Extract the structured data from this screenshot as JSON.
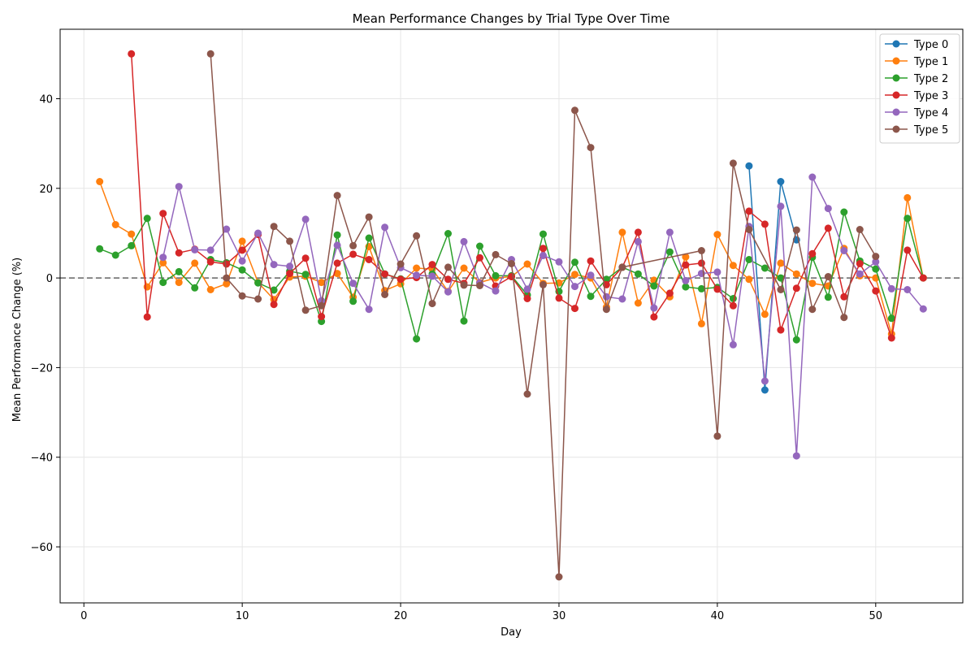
{
  "chart_data": {
    "type": "line",
    "title": "Mean Performance Changes by Trial Type Over Time",
    "xlabel": "Day",
    "ylabel": "Mean Performance Change (%)",
    "xlim": [
      -1.5,
      55.5
    ],
    "ylim": [
      -72.5,
      55.5
    ],
    "xticks": [
      0,
      10,
      20,
      30,
      40,
      50
    ],
    "yticks": [
      -60,
      -40,
      -20,
      0,
      20,
      40
    ],
    "grid": true,
    "reference_line": 0,
    "legend_position": "top-right",
    "series": [
      {
        "name": "Type 0",
        "color": "#1f77b4",
        "points": [
          [
            42,
            25
          ],
          [
            43,
            -25
          ],
          [
            44,
            21.5
          ],
          [
            45,
            8.5
          ]
        ]
      },
      {
        "name": "Type 1",
        "color": "#ff7f0e",
        "points": [
          [
            1,
            21.5
          ],
          [
            2,
            11.9
          ],
          [
            3,
            9.8
          ],
          [
            4,
            -2
          ],
          [
            5,
            3.4
          ],
          [
            6,
            -1
          ],
          [
            7,
            3.3
          ],
          [
            8,
            -2.6
          ],
          [
            9,
            -1.3
          ],
          [
            10,
            8.2
          ],
          [
            11,
            -1
          ],
          [
            12,
            -4.8
          ],
          [
            13,
            0.2
          ],
          [
            14,
            0.4
          ],
          [
            15,
            -1
          ],
          [
            16,
            1
          ],
          [
            17,
            -4.3
          ],
          [
            18,
            7
          ],
          [
            19,
            -2.8
          ],
          [
            20,
            -1.3
          ],
          [
            21,
            2.2
          ],
          [
            22,
            2
          ],
          [
            23,
            -3
          ],
          [
            24,
            2.2
          ],
          [
            25,
            -1
          ],
          [
            26,
            0
          ],
          [
            27,
            0.3
          ],
          [
            28,
            3.1
          ],
          [
            29,
            -1.2
          ],
          [
            30,
            -1.1
          ],
          [
            31,
            0.8
          ],
          [
            32,
            0
          ],
          [
            33,
            -6.5
          ],
          [
            34,
            10.2
          ],
          [
            35,
            -5.6
          ],
          [
            36,
            -0.5
          ],
          [
            37,
            -4.2
          ],
          [
            38,
            4.7
          ],
          [
            39,
            -10.2
          ],
          [
            40,
            9.7
          ],
          [
            41,
            2.8
          ],
          [
            42,
            -0.3
          ],
          [
            43,
            -8.1
          ],
          [
            44,
            3.3
          ],
          [
            45,
            0.9
          ],
          [
            46,
            -1.2
          ],
          [
            47,
            -1.8
          ],
          [
            48,
            6.6
          ],
          [
            49,
            0.5
          ],
          [
            50,
            0
          ],
          [
            51,
            -12.5
          ],
          [
            52,
            17.9
          ],
          [
            53,
            0
          ]
        ]
      },
      {
        "name": "Type 2",
        "color": "#2ca02c",
        "points": [
          [
            1,
            6.5
          ],
          [
            2,
            5.1
          ],
          [
            3,
            7.2
          ],
          [
            4,
            13.3
          ],
          [
            5,
            -1
          ],
          [
            6,
            1.4
          ],
          [
            7,
            -2.2
          ],
          [
            8,
            4.1
          ],
          [
            9,
            3.4
          ],
          [
            10,
            1.8
          ],
          [
            11,
            -1.1
          ],
          [
            12,
            -2.7
          ],
          [
            13,
            1.5
          ],
          [
            14,
            0.8
          ],
          [
            15,
            -9.7
          ],
          [
            16,
            9.6
          ],
          [
            17,
            -5.2
          ],
          [
            18,
            8.9
          ],
          [
            19,
            0.9
          ],
          [
            20,
            -0.2
          ],
          [
            21,
            -13.6
          ],
          [
            22,
            0.9
          ],
          [
            23,
            9.9
          ],
          [
            24,
            -9.6
          ],
          [
            25,
            7.1
          ],
          [
            26,
            0.5
          ],
          [
            27,
            0.5
          ],
          [
            28,
            -3.8
          ],
          [
            29,
            9.8
          ],
          [
            30,
            -3
          ],
          [
            31,
            3.5
          ],
          [
            32,
            -4.1
          ],
          [
            33,
            -0.3
          ],
          [
            34,
            2.4
          ],
          [
            35,
            0.9
          ],
          [
            36,
            -1.8
          ],
          [
            37,
            5.8
          ],
          [
            38,
            -2
          ],
          [
            39,
            -2.4
          ],
          [
            40,
            -2.1
          ],
          [
            41,
            -4.6
          ],
          [
            42,
            4.1
          ],
          [
            43,
            2.2
          ],
          [
            44,
            0
          ],
          [
            45,
            -13.8
          ],
          [
            46,
            4.6
          ],
          [
            47,
            -4.3
          ],
          [
            48,
            14.7
          ],
          [
            49,
            3.8
          ],
          [
            50,
            2
          ],
          [
            51,
            -9
          ],
          [
            52,
            13.3
          ],
          [
            53,
            0
          ]
        ]
      },
      {
        "name": "Type 3",
        "color": "#d62728",
        "points": [
          [
            3,
            50
          ],
          [
            4,
            -8.7
          ],
          [
            5,
            14.4
          ],
          [
            6,
            5.6
          ],
          [
            7,
            6.4
          ],
          [
            8,
            3.6
          ],
          [
            9,
            3.1
          ],
          [
            10,
            6.2
          ],
          [
            11,
            9.7
          ],
          [
            12,
            -5.9
          ],
          [
            13,
            1
          ],
          [
            14,
            4.4
          ],
          [
            15,
            -8.6
          ],
          [
            16,
            3.3
          ],
          [
            17,
            5.3
          ],
          [
            18,
            4.1
          ],
          [
            19,
            0.9
          ],
          [
            20,
            -0.3
          ],
          [
            21,
            0.1
          ],
          [
            22,
            3
          ],
          [
            23,
            -0.3
          ],
          [
            24,
            -1.2
          ],
          [
            25,
            4.5
          ],
          [
            26,
            -1.8
          ],
          [
            27,
            0.3
          ],
          [
            28,
            -4.6
          ],
          [
            29,
            6.6
          ],
          [
            30,
            -4.5
          ],
          [
            31,
            -6.8
          ],
          [
            32,
            3.8
          ],
          [
            33,
            -1.5
          ],
          [
            34,
            2.4
          ],
          [
            35,
            10.2
          ],
          [
            36,
            -8.7
          ],
          [
            37,
            -3.4
          ],
          [
            38,
            2.9
          ],
          [
            39,
            3.3
          ],
          [
            40,
            -2.5
          ],
          [
            41,
            -6.2
          ],
          [
            42,
            14.9
          ],
          [
            43,
            12
          ],
          [
            44,
            -11.6
          ],
          [
            45,
            -2.3
          ],
          [
            46,
            5.4
          ],
          [
            47,
            11.1
          ],
          [
            48,
            -4.2
          ],
          [
            49,
            3.2
          ],
          [
            50,
            -2.9
          ],
          [
            51,
            -13.4
          ],
          [
            52,
            6.2
          ],
          [
            53,
            0
          ]
        ]
      },
      {
        "name": "Type 4",
        "color": "#9467bd",
        "points": [
          [
            5,
            4.6
          ],
          [
            6,
            20.4
          ],
          [
            7,
            6.3
          ],
          [
            8,
            6.2
          ],
          [
            9,
            10.9
          ],
          [
            10,
            3.8
          ],
          [
            11,
            10
          ],
          [
            12,
            3
          ],
          [
            13,
            2.6
          ],
          [
            14,
            13.1
          ],
          [
            15,
            -5.1
          ],
          [
            16,
            7.3
          ],
          [
            17,
            -1.2
          ],
          [
            18,
            -7
          ],
          [
            19,
            11.3
          ],
          [
            20,
            2.3
          ],
          [
            21,
            0.6
          ],
          [
            22,
            0.4
          ],
          [
            23,
            -3.1
          ],
          [
            24,
            8.1
          ],
          [
            25,
            -1.1
          ],
          [
            26,
            -2.9
          ],
          [
            27,
            4.1
          ],
          [
            28,
            -2.5
          ],
          [
            29,
            5
          ],
          [
            30,
            3.6
          ],
          [
            31,
            -1.9
          ],
          [
            32,
            0.6
          ],
          [
            33,
            -4.2
          ],
          [
            34,
            -4.7
          ],
          [
            35,
            8.1
          ],
          [
            36,
            -6.7
          ],
          [
            37,
            10.2
          ],
          [
            38,
            -0.6
          ],
          [
            39,
            1
          ],
          [
            40,
            1.3
          ],
          [
            41,
            -14.9
          ],
          [
            42,
            11.5
          ],
          [
            43,
            -23
          ],
          [
            44,
            16
          ],
          [
            45,
            -39.7
          ],
          [
            46,
            22.5
          ],
          [
            47,
            15.5
          ],
          [
            48,
            6.1
          ],
          [
            49,
            0.9
          ],
          [
            50,
            3.6
          ],
          [
            51,
            -2.4
          ],
          [
            52,
            -2.6
          ],
          [
            53,
            -6.9
          ]
        ]
      },
      {
        "name": "Type 5",
        "color": "#8c564b",
        "points": [
          [
            8,
            50
          ],
          [
            9,
            0
          ],
          [
            10,
            -4
          ],
          [
            11,
            -4.7
          ],
          [
            12,
            11.5
          ],
          [
            13,
            8.2
          ],
          [
            14,
            -7.2
          ],
          [
            15,
            -6.2
          ],
          [
            16,
            18.4
          ],
          [
            17,
            7.2
          ],
          [
            18,
            13.6
          ],
          [
            19,
            -3.7
          ],
          [
            20,
            3.1
          ],
          [
            21,
            9.4
          ],
          [
            22,
            -5.7
          ],
          [
            23,
            2.4
          ],
          [
            24,
            -1.6
          ],
          [
            25,
            -1.7
          ],
          [
            26,
            5.2
          ],
          [
            27,
            3.2
          ],
          [
            28,
            -25.9
          ],
          [
            29,
            -1.5
          ],
          [
            30,
            -66.7
          ],
          [
            31,
            37.4
          ],
          [
            32,
            29.1
          ],
          [
            33,
            -7
          ],
          [
            34,
            2.4
          ],
          [
            39,
            6.1
          ],
          [
            40,
            -35.3
          ],
          [
            41,
            25.6
          ],
          [
            42,
            10.8
          ],
          [
            44,
            -2.6
          ],
          [
            45,
            10.7
          ],
          [
            46,
            -7
          ],
          [
            47,
            0.3
          ],
          [
            48,
            -8.8
          ],
          [
            49,
            10.8
          ],
          [
            50,
            4.8
          ]
        ]
      }
    ]
  }
}
